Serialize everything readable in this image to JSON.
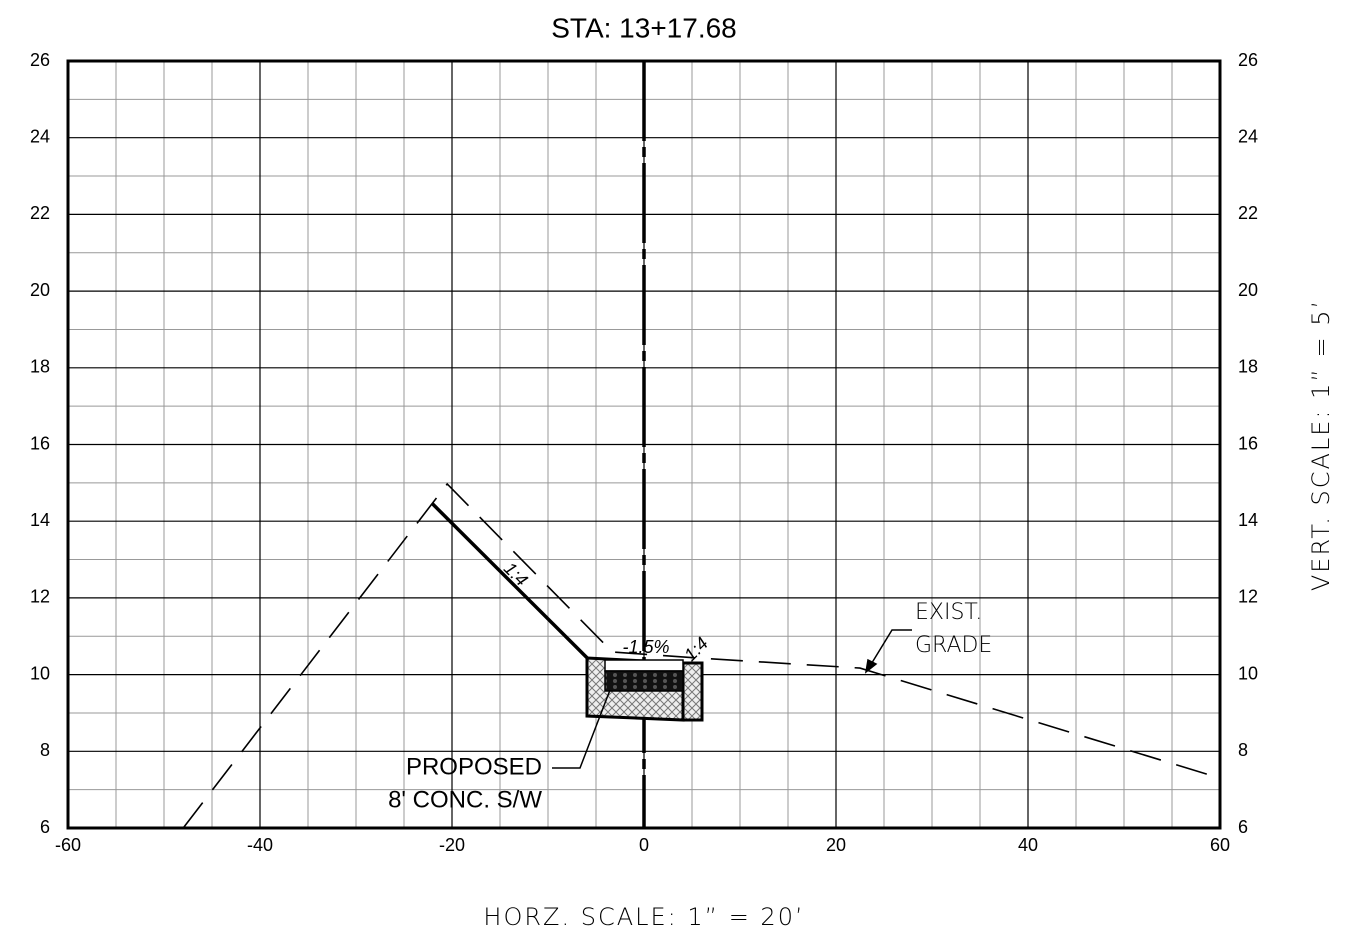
{
  "chart_data": {
    "type": "line",
    "title": "STA: 13+17.68",
    "xlabel": "HORZ. SCALE: 1” = 20’",
    "ylabel": "VERT. SCALE: 1” = 5’",
    "xlim": [
      -60,
      60
    ],
    "ylim": [
      6,
      26
    ],
    "y2lim": [
      6,
      26
    ],
    "xticks": [
      -60,
      -40,
      -20,
      0,
      20,
      40,
      60
    ],
    "yticks": [
      6,
      8,
      10,
      12,
      14,
      16,
      18,
      20,
      22,
      24,
      26
    ],
    "y2ticks": [
      6,
      8,
      10,
      12,
      14,
      16,
      18,
      20,
      22,
      24,
      26
    ],
    "grid": true,
    "series": [
      {
        "name": "EXIST. GRADE",
        "color": "#000000",
        "style": "dashed",
        "x": [
          -48,
          -20.5,
          -3.3,
          5.8,
          22.5,
          60
        ],
        "values": [
          6,
          14.97,
          10.59,
          10.43,
          10.17,
          7.3
        ]
      },
      {
        "name": "PROPOSED 8' CONC. S/W",
        "color": "#000000",
        "style": "solid",
        "x": [
          -22.1,
          -5.9
        ],
        "values": [
          14.47,
          10.43
        ]
      }
    ],
    "annotations": [
      "1:4",
      "-1.5%",
      "1:4",
      "EXIST.",
      "GRADE",
      "PROPOSED",
      "8' CONC. S/W"
    ]
  }
}
